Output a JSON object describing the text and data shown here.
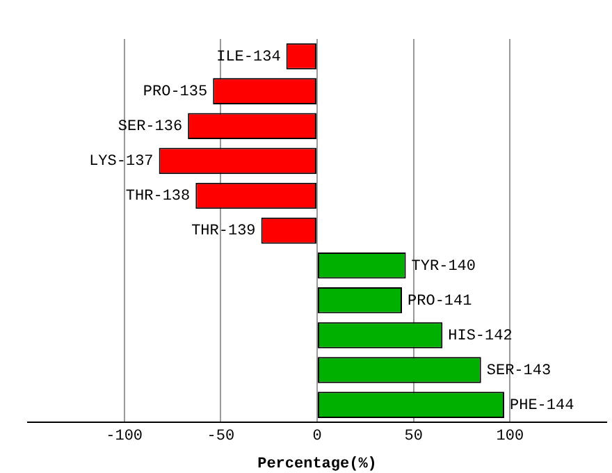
{
  "chart_data": {
    "type": "bar",
    "orientation": "horizontal",
    "xlabel": "Percentage(%)",
    "categories": [
      "ILE-134",
      "PRO-135",
      "SER-136",
      "LYS-137",
      "THR-138",
      "THR-139",
      "TYR-140",
      "PRO-141",
      "HIS-142",
      "SER-143",
      "PHE-144"
    ],
    "values": [
      -16,
      -54,
      -67,
      -82,
      -63,
      -29,
      46,
      44,
      65,
      85,
      97
    ],
    "colors": [
      "#ff0000",
      "#ff0000",
      "#ff0000",
      "#ff0000",
      "#ff0000",
      "#ff0000",
      "#00b000",
      "#00b000",
      "#00b000",
      "#00b000",
      "#00b000"
    ],
    "xlim": [
      -150,
      150
    ],
    "xticks": [
      -100,
      -50,
      0,
      50,
      100
    ],
    "grid": "x"
  }
}
